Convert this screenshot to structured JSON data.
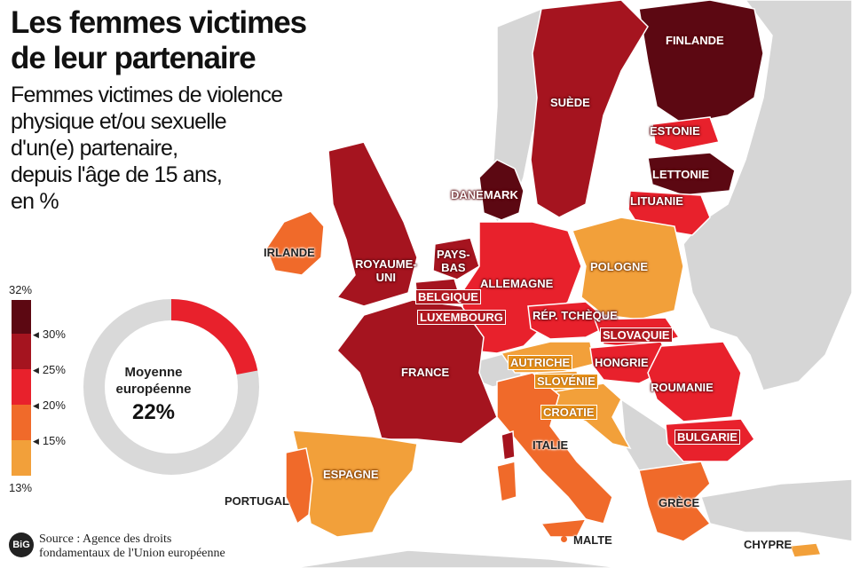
{
  "title_lines": [
    "Les femmes victimes",
    "de leur partenaire"
  ],
  "subtitle_lines": [
    "Femmes victimes de violence",
    "physique et/ou sexuelle",
    "d'un(e) partenaire,",
    "depuis l'âge de 15 ans,",
    "en %"
  ],
  "legend": {
    "max_label": "32%",
    "min_label": "13%",
    "ticks": [
      "30%",
      "25%",
      "20%",
      "15%"
    ],
    "colors": [
      "#5c0812",
      "#a5141f",
      "#e8212c",
      "#f06a2a",
      "#f2a03a"
    ]
  },
  "average": {
    "label_lines": [
      "Moyenne",
      "européenne"
    ],
    "value_label": "22%",
    "value": 22,
    "color": "#e8212c",
    "track_color": "#d9d9d9"
  },
  "countries": [
    {
      "name": "FINLANDE"
    },
    {
      "name": "SUÈDE"
    },
    {
      "name": "ESTONIE"
    },
    {
      "name": "LETTONIE"
    },
    {
      "name": "LITUANIE"
    },
    {
      "name": "DANEMARK"
    },
    {
      "name": "IRLANDE"
    },
    {
      "name": "ROYAUME-UNI",
      "lines": [
        "ROYAUME-",
        "UNI"
      ]
    },
    {
      "name": "PAYS-BAS",
      "lines": [
        "PAYS-",
        "BAS"
      ]
    },
    {
      "name": "ALLEMAGNE"
    },
    {
      "name": "POLOGNE"
    },
    {
      "name": "BELGIQUE"
    },
    {
      "name": "LUXEMBOURG"
    },
    {
      "name": "RÉP. TCHÈQUE"
    },
    {
      "name": "SLOVAQUIE"
    },
    {
      "name": "AUTRICHE"
    },
    {
      "name": "HONGRIE"
    },
    {
      "name": "FRANCE"
    },
    {
      "name": "SLOVÉNIE"
    },
    {
      "name": "ROUMANIE"
    },
    {
      "name": "CROATIE"
    },
    {
      "name": "BULGARIE"
    },
    {
      "name": "ITALIE"
    },
    {
      "name": "ESPAGNE"
    },
    {
      "name": "PORTUGAL"
    },
    {
      "name": "GRÈCE"
    },
    {
      "name": "MALTE"
    },
    {
      "name": "CHYPRE"
    }
  ],
  "source_lines": [
    "Source : Agence des droits",
    "fondamentaux de l'Union européenne"
  ],
  "logo_text": "BiG"
}
